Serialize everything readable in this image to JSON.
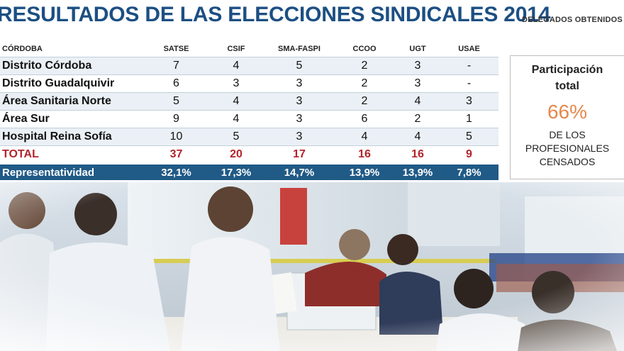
{
  "header": {
    "title": "RESULTADOS DE LAS ELECCIONES SINDICALES 2014",
    "subtitle": "DELEGADOS OBTENIDOS"
  },
  "table": {
    "corner": "CÓRDOBA",
    "columns": [
      "SATSE",
      "CSIF",
      "SMA-FASPI",
      "CCOO",
      "UGT",
      "USAE"
    ],
    "rows": [
      {
        "label": "Distrito Córdoba",
        "values": [
          "7",
          "4",
          "5",
          "2",
          "3",
          "-"
        ]
      },
      {
        "label": "Distrito Guadalquivir",
        "values": [
          "6",
          "3",
          "3",
          "2",
          "3",
          "-"
        ]
      },
      {
        "label": "Área Sanitaria Norte",
        "values": [
          "5",
          "4",
          "3",
          "2",
          "4",
          "3"
        ]
      },
      {
        "label": "Área Sur",
        "values": [
          "9",
          "4",
          "3",
          "6",
          "2",
          "1"
        ]
      },
      {
        "label": "Hospital Reina Sofía",
        "values": [
          "10",
          "5",
          "3",
          "4",
          "4",
          "5"
        ]
      }
    ],
    "total": {
      "label": "TOTAL",
      "values": [
        "37",
        "20",
        "17",
        "16",
        "16",
        "9"
      ]
    },
    "representatividad": {
      "label": "Representatividad",
      "values": [
        "32,1%",
        "17,3%",
        "14,7%",
        "13,9%",
        "13,9%",
        "7,8%"
      ]
    }
  },
  "participation": {
    "title_line1": "Participación",
    "title_line2": "total",
    "value": "66%",
    "desc_line1": "DE LOS",
    "desc_line2": "PROFESIONALES",
    "desc_line3": "CENSADOS"
  },
  "colors": {
    "title": "#1c4f83",
    "total_red": "#b3232b",
    "band_blue": "#205a86",
    "accent_orange": "#e5884b"
  },
  "chart_data": {
    "type": "table",
    "title": "RESULTADOS DE LAS ELECCIONES SINDICALES 2014",
    "subtitle": "DELEGADOS OBTENIDOS",
    "categories": [
      "Distrito Córdoba",
      "Distrito Guadalquivir",
      "Área Sanitaria Norte",
      "Área Sur",
      "Hospital Reina Sofía"
    ],
    "series": [
      {
        "name": "SATSE",
        "values": [
          7,
          6,
          5,
          9,
          10
        ],
        "total": 37,
        "share": 32.1
      },
      {
        "name": "CSIF",
        "values": [
          4,
          3,
          4,
          4,
          5
        ],
        "total": 20,
        "share": 17.3
      },
      {
        "name": "SMA-FASPI",
        "values": [
          5,
          3,
          3,
          3,
          3
        ],
        "total": 17,
        "share": 14.7
      },
      {
        "name": "CCOO",
        "values": [
          2,
          2,
          2,
          6,
          4
        ],
        "total": 16,
        "share": 13.9
      },
      {
        "name": "UGT",
        "values": [
          3,
          3,
          4,
          2,
          4
        ],
        "total": 16,
        "share": 13.9
      },
      {
        "name": "USAE",
        "values": [
          null,
          null,
          3,
          1,
          5
        ],
        "total": 9,
        "share": 7.8
      }
    ],
    "participation_percent": 66
  }
}
